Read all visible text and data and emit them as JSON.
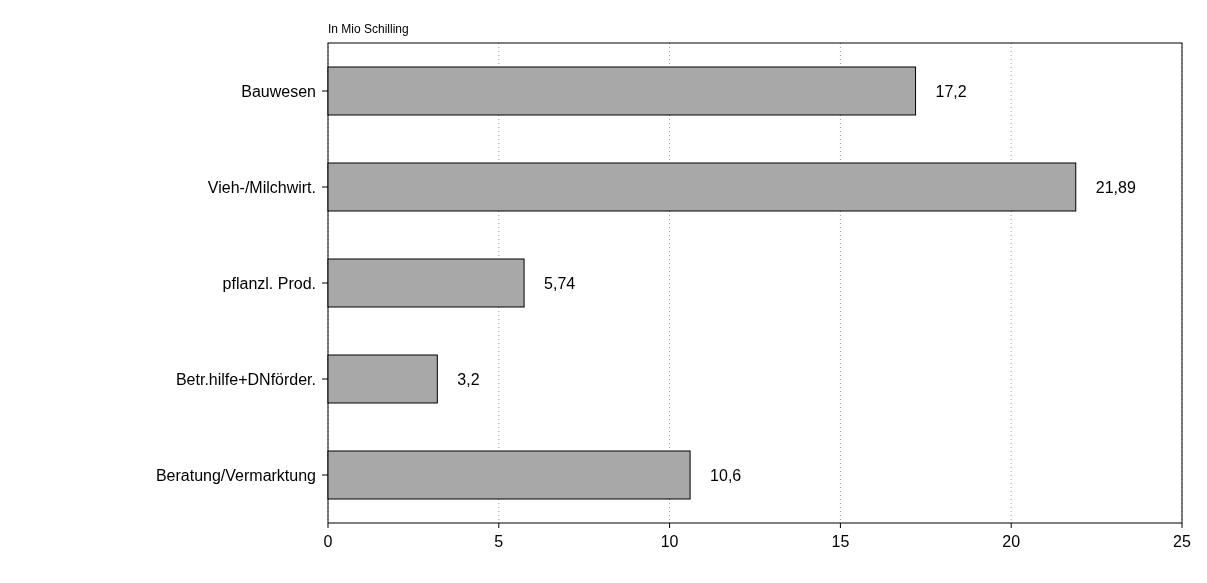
{
  "chart_data": {
    "type": "bar",
    "orientation": "horizontal",
    "xlabel": "In Mio Schilling",
    "categories": [
      "Bauwesen",
      "Vieh-/Milchwirt.",
      "pflanzl. Prod.",
      "Betr.hilfe+DNförder.",
      "Beratung/Vermarktung"
    ],
    "values": [
      17.2,
      21.89,
      5.74,
      3.2,
      10.6
    ],
    "value_labels": [
      "17,2",
      "21,89",
      "5,74",
      "3,2",
      "10,6"
    ],
    "color": "#a8a8a8",
    "xlim": [
      0,
      25
    ],
    "xticks": [
      0,
      5,
      10,
      15,
      20,
      25
    ],
    "grid": "x"
  }
}
